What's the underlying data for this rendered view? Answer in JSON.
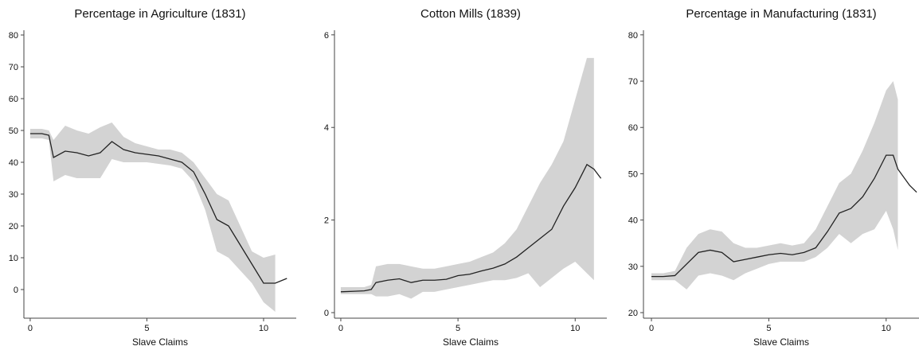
{
  "chart_data": [
    {
      "type": "line",
      "title": "Percentage in Agriculture (1831)",
      "x_label": "Slave Claims",
      "x": [
        0,
        0.5,
        0.8,
        1,
        1.5,
        2,
        2.5,
        3,
        3.5,
        4,
        4.5,
        5,
        5.5,
        6,
        6.5,
        7,
        7.5,
        8,
        8.5,
        9,
        9.5,
        10,
        10.5,
        11
      ],
      "values": [
        49,
        49,
        48.5,
        41.5,
        43.5,
        43,
        42,
        43,
        46.5,
        44,
        43,
        42.5,
        42,
        41,
        40,
        37,
        30,
        22,
        20,
        14,
        8,
        2,
        2,
        3.5
      ],
      "upper": [
        50.5,
        50.5,
        50,
        47,
        51.5,
        50,
        49,
        51,
        52.5,
        48,
        46,
        45,
        44,
        44,
        43,
        40,
        35,
        30,
        28,
        20,
        12,
        10,
        11,
        null
      ],
      "lower": [
        47.5,
        47.5,
        47,
        34,
        36,
        35,
        35,
        35,
        41,
        40,
        40,
        40,
        39.5,
        39,
        38,
        34,
        25,
        12,
        10,
        6,
        2,
        -4,
        -7,
        null
      ],
      "xlim": [
        -0.27,
        11.4
      ],
      "ylim": [
        -9,
        81.5
      ],
      "xticks": [
        0,
        5,
        10
      ],
      "yticks": [
        0,
        10,
        20,
        30,
        40,
        50,
        60,
        70,
        80
      ],
      "line_color": "#222222",
      "band_color": "#d3d3d3"
    },
    {
      "type": "line",
      "title": "Cotton Mills (1839)",
      "x_label": "Slave Claims",
      "x": [
        0,
        0.5,
        1,
        1.3,
        1.5,
        2,
        2.5,
        3,
        3.5,
        4,
        4.5,
        5,
        5.5,
        6,
        6.5,
        7,
        7.5,
        8,
        8.5,
        9,
        9.5,
        10,
        10.5,
        10.8,
        11.1
      ],
      "values": [
        0.45,
        0.46,
        0.47,
        0.5,
        0.65,
        0.7,
        0.73,
        0.65,
        0.7,
        0.7,
        0.72,
        0.8,
        0.83,
        0.9,
        0.96,
        1.05,
        1.2,
        1.4,
        1.6,
        1.8,
        2.3,
        2.7,
        3.2,
        3.1,
        2.9
      ],
      "upper": [
        0.55,
        0.55,
        0.55,
        0.6,
        1,
        1.05,
        1.05,
        1,
        0.95,
        0.95,
        1,
        1.05,
        1.1,
        1.2,
        1.3,
        1.5,
        1.8,
        2.3,
        2.8,
        3.2,
        3.7,
        4.6,
        5.5,
        5.5,
        null
      ],
      "lower": [
        0.4,
        0.4,
        0.4,
        0.4,
        0.35,
        0.35,
        0.4,
        0.3,
        0.45,
        0.45,
        0.5,
        0.55,
        0.6,
        0.65,
        0.7,
        0.7,
        0.75,
        0.85,
        0.55,
        0.75,
        0.95,
        1.1,
        0.85,
        0.7,
        null
      ],
      "xlim": [
        -0.27,
        11.35
      ],
      "ylim": [
        -0.12,
        6.1
      ],
      "xticks": [
        0,
        5,
        10
      ],
      "yticks": [
        0,
        2,
        4,
        6
      ],
      "line_color": "#222222",
      "band_color": "#d3d3d3"
    },
    {
      "type": "line",
      "title": "Percentage in Manufacturing (1831)",
      "x_label": "Slave Claims",
      "x": [
        0,
        0.5,
        1,
        1.5,
        2,
        2.5,
        3,
        3.5,
        4,
        4.5,
        5,
        5.5,
        6,
        6.5,
        7,
        7.5,
        8,
        8.5,
        9,
        9.5,
        10,
        10.3,
        10.5,
        11,
        11.3
      ],
      "values": [
        27.8,
        27.8,
        28,
        30.5,
        33,
        33.5,
        33,
        31,
        31.5,
        32,
        32.5,
        32.8,
        32.5,
        33,
        34,
        37.5,
        41.5,
        42.5,
        45,
        49,
        54,
        54,
        51,
        47.5,
        46
      ],
      "upper": [
        28.5,
        28.5,
        29,
        34,
        37,
        38,
        37.5,
        35,
        34,
        34,
        34.5,
        35,
        34.5,
        35,
        38,
        43,
        48,
        50,
        55,
        61,
        68,
        70,
        66,
        null,
        null
      ],
      "lower": [
        27,
        27,
        27,
        25,
        28,
        28.5,
        28,
        27,
        28.5,
        29.5,
        30.5,
        31,
        31,
        31,
        32,
        34,
        37,
        35,
        37,
        38,
        42,
        38,
        33.5,
        null,
        null
      ],
      "xlim": [
        -0.34,
        11.4
      ],
      "ylim": [
        18.8,
        81
      ],
      "xticks": [
        0,
        5,
        10
      ],
      "yticks": [
        20,
        30,
        40,
        50,
        60,
        70,
        80
      ],
      "line_color": "#222222",
      "band_color": "#d3d3d3"
    }
  ]
}
